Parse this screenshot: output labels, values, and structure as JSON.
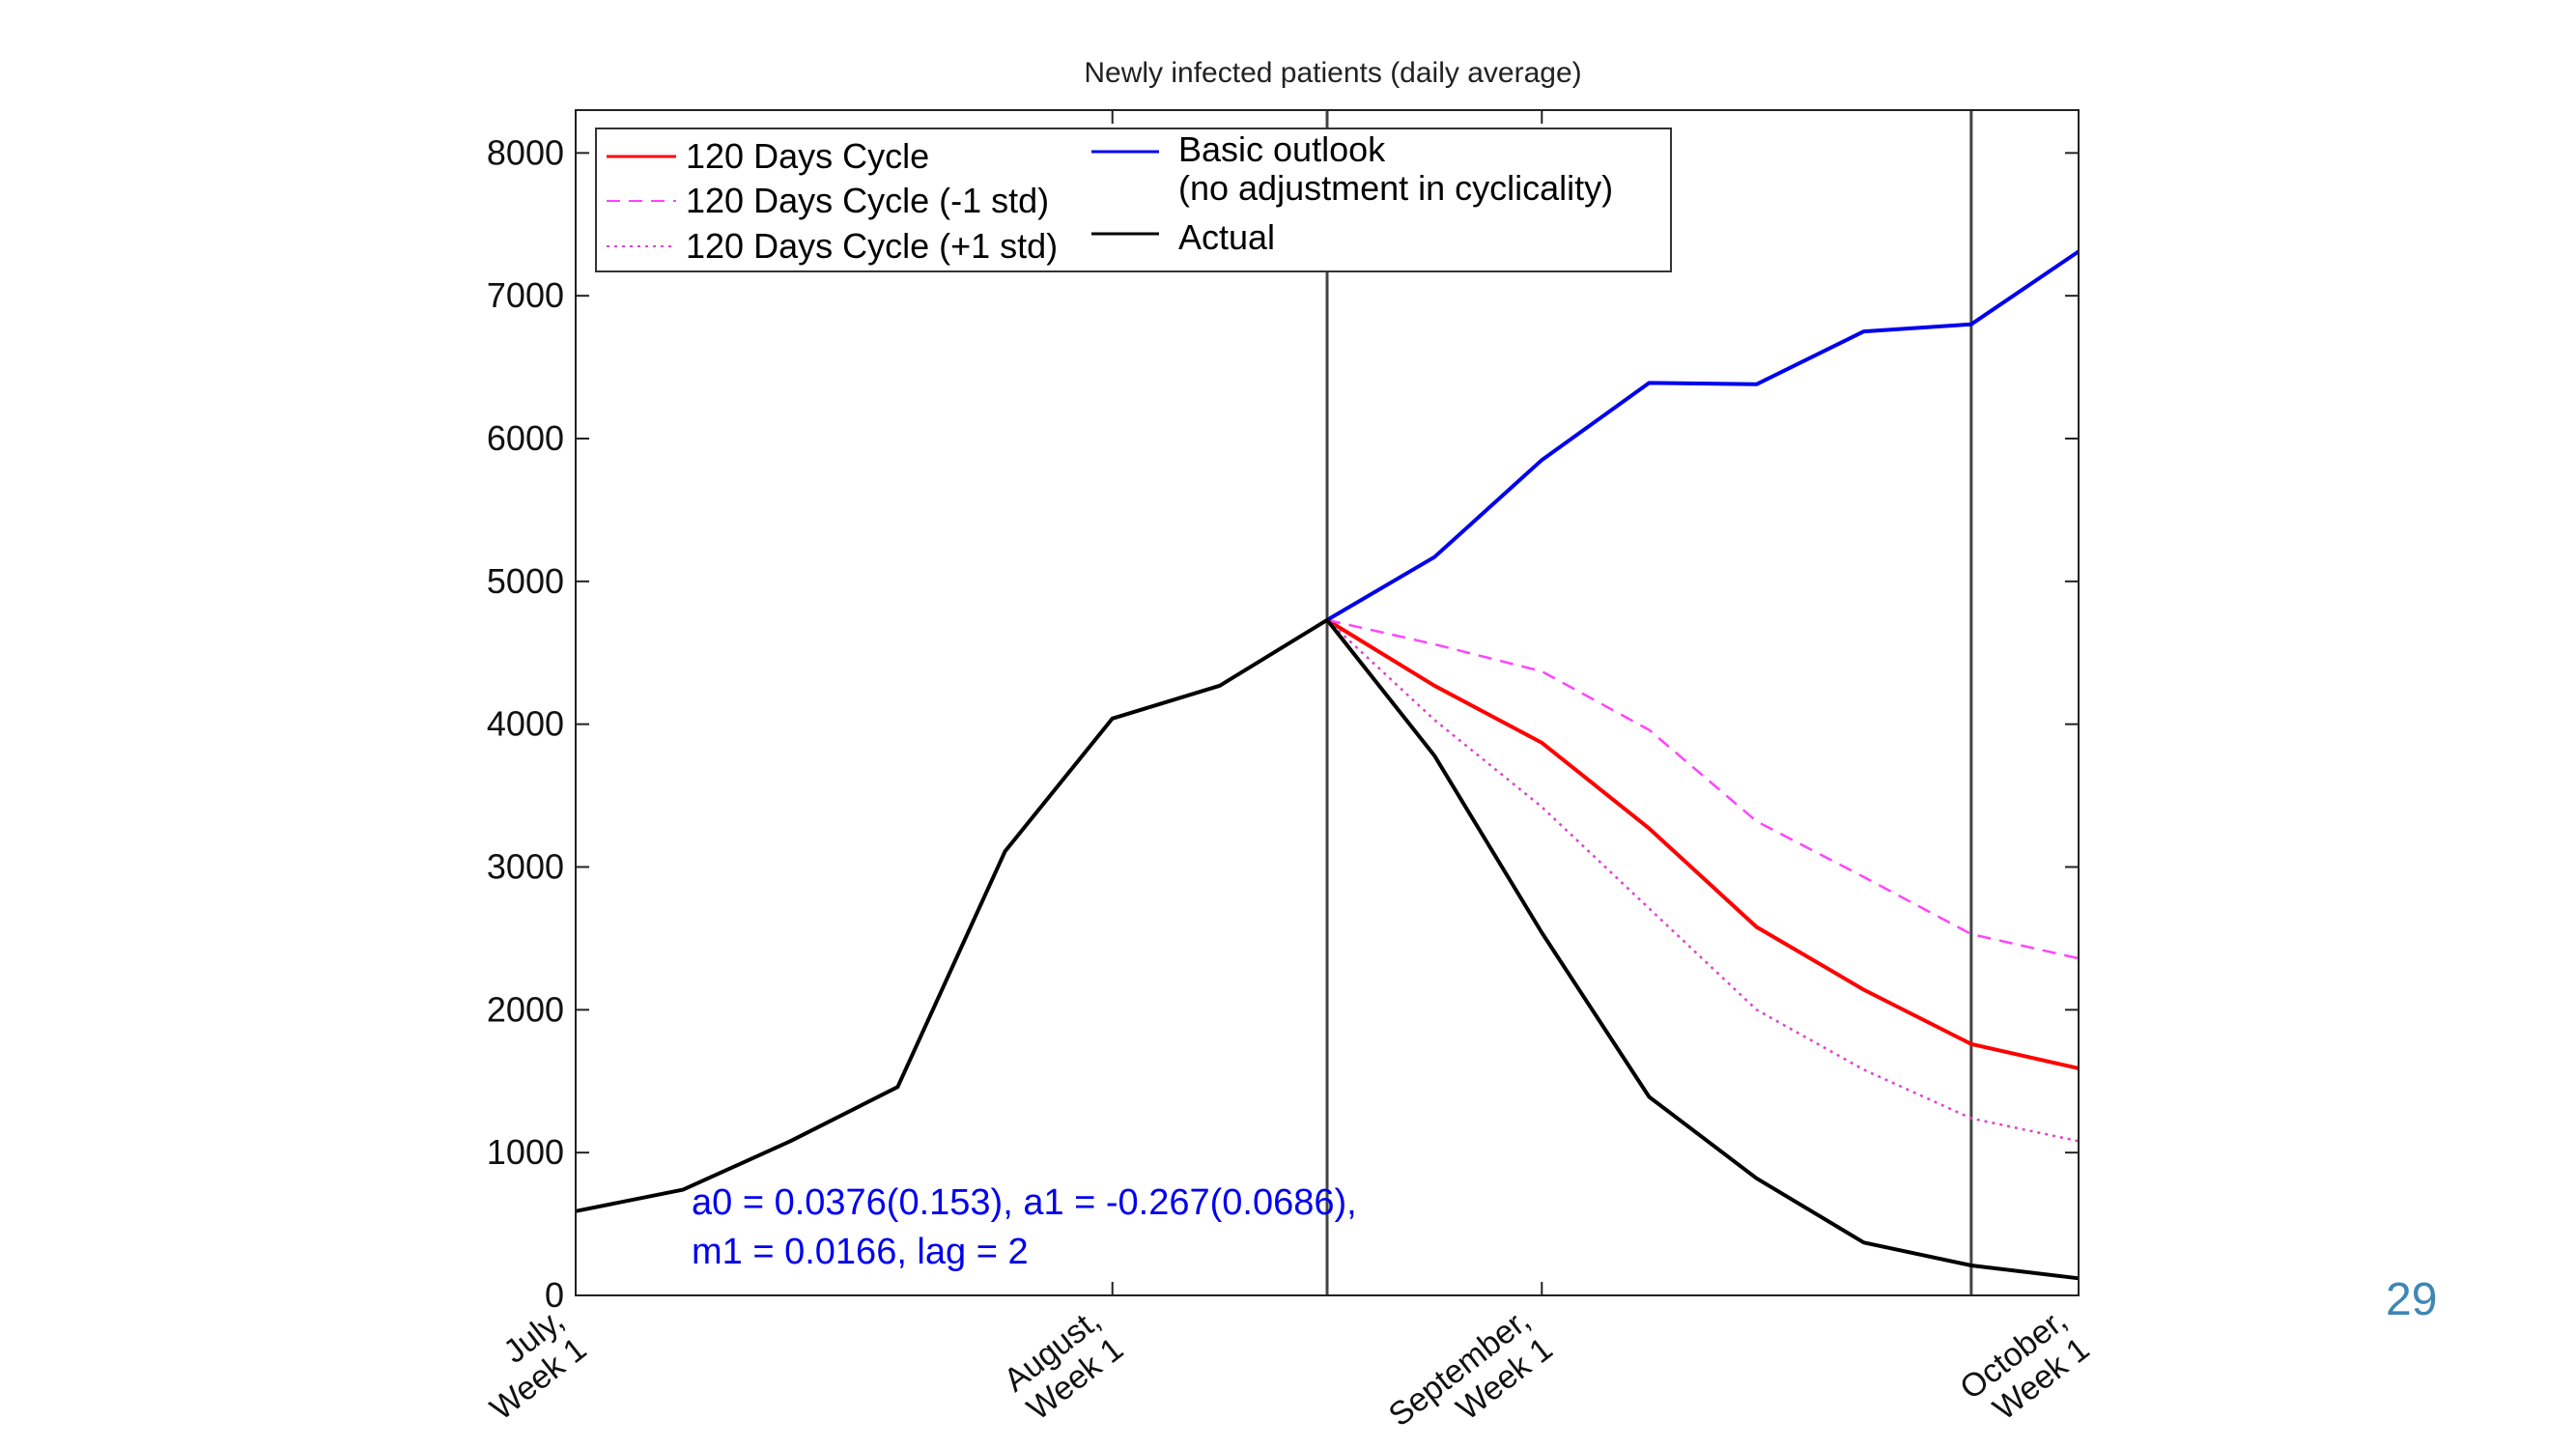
{
  "slide": {
    "page_number": "29",
    "page_number_color": "#3f86b4"
  },
  "chart_data": {
    "type": "line",
    "title": "Newly infected patients (daily average)",
    "xlabel": "",
    "ylabel": "",
    "ylim": [
      0,
      8300
    ],
    "xlim": [
      0,
      14
    ],
    "yticks": [
      0,
      1000,
      2000,
      3000,
      4000,
      5000,
      6000,
      7000,
      8000
    ],
    "xticks": [
      {
        "x": 0,
        "label": [
          "July,",
          "Week 1"
        ]
      },
      {
        "x": 5,
        "label": [
          "August,",
          "Week 1"
        ]
      },
      {
        "x": 9,
        "label": [
          "September,",
          "Week 1"
        ]
      },
      {
        "x": 14,
        "label": [
          "October,",
          "Week 1"
        ]
      }
    ],
    "vlines": [
      7,
      13
    ],
    "grid": false,
    "legend_position": "top-left",
    "legend_left": [
      "120 Days Cycle",
      "120 Days Cycle (-1 std)",
      "120 Days Cycle (+1 std)"
    ],
    "legend_right": [
      "Basic outlook|(no adjustment in cyclicality)",
      "Actual"
    ],
    "annotation": {
      "color": "#0000ee",
      "lines": [
        "a0 = 0.0376(0.153), a1 = -0.267(0.0686),",
        "m1 = 0.0166, lag = 2"
      ]
    },
    "series": [
      {
        "name": "120 Days Cycle",
        "color": "#ff0000",
        "style": "solid",
        "x": [
          7,
          8,
          9,
          10,
          11,
          12,
          13,
          14
        ],
        "values": [
          4730,
          4270,
          3870,
          3270,
          2580,
          2140,
          1760,
          1590
        ]
      },
      {
        "name": "120 Days Cycle (-1 std)",
        "color": "#ff44ff",
        "style": "dashed",
        "x": [
          7,
          8,
          9,
          10,
          11,
          12,
          13,
          14
        ],
        "values": [
          4730,
          4560,
          4370,
          3960,
          3320,
          2930,
          2530,
          2360
        ]
      },
      {
        "name": "120 Days Cycle (+1 std)",
        "color": "#dd44cc",
        "style": "dotted",
        "x": [
          7,
          8,
          9,
          10,
          11,
          12,
          13,
          14
        ],
        "values": [
          4730,
          4030,
          3420,
          2710,
          2000,
          1580,
          1240,
          1080
        ]
      },
      {
        "name": "Basic outlook (no adjustment in cyclicality)",
        "color": "#0000ee",
        "style": "solid",
        "x": [
          7,
          8,
          9,
          10,
          11,
          12,
          13,
          14
        ],
        "values": [
          4730,
          5170,
          5850,
          6390,
          6380,
          6750,
          6800,
          7310
        ]
      },
      {
        "name": "Actual",
        "color": "#000000",
        "style": "solid",
        "x": [
          0,
          1,
          2,
          3,
          4,
          5,
          6,
          7,
          8,
          9,
          10,
          11,
          12,
          13,
          14
        ],
        "values": [
          590,
          740,
          1080,
          1460,
          3110,
          4040,
          4270,
          4730,
          3780,
          2540,
          1390,
          820,
          370,
          210,
          120
        ]
      }
    ]
  }
}
